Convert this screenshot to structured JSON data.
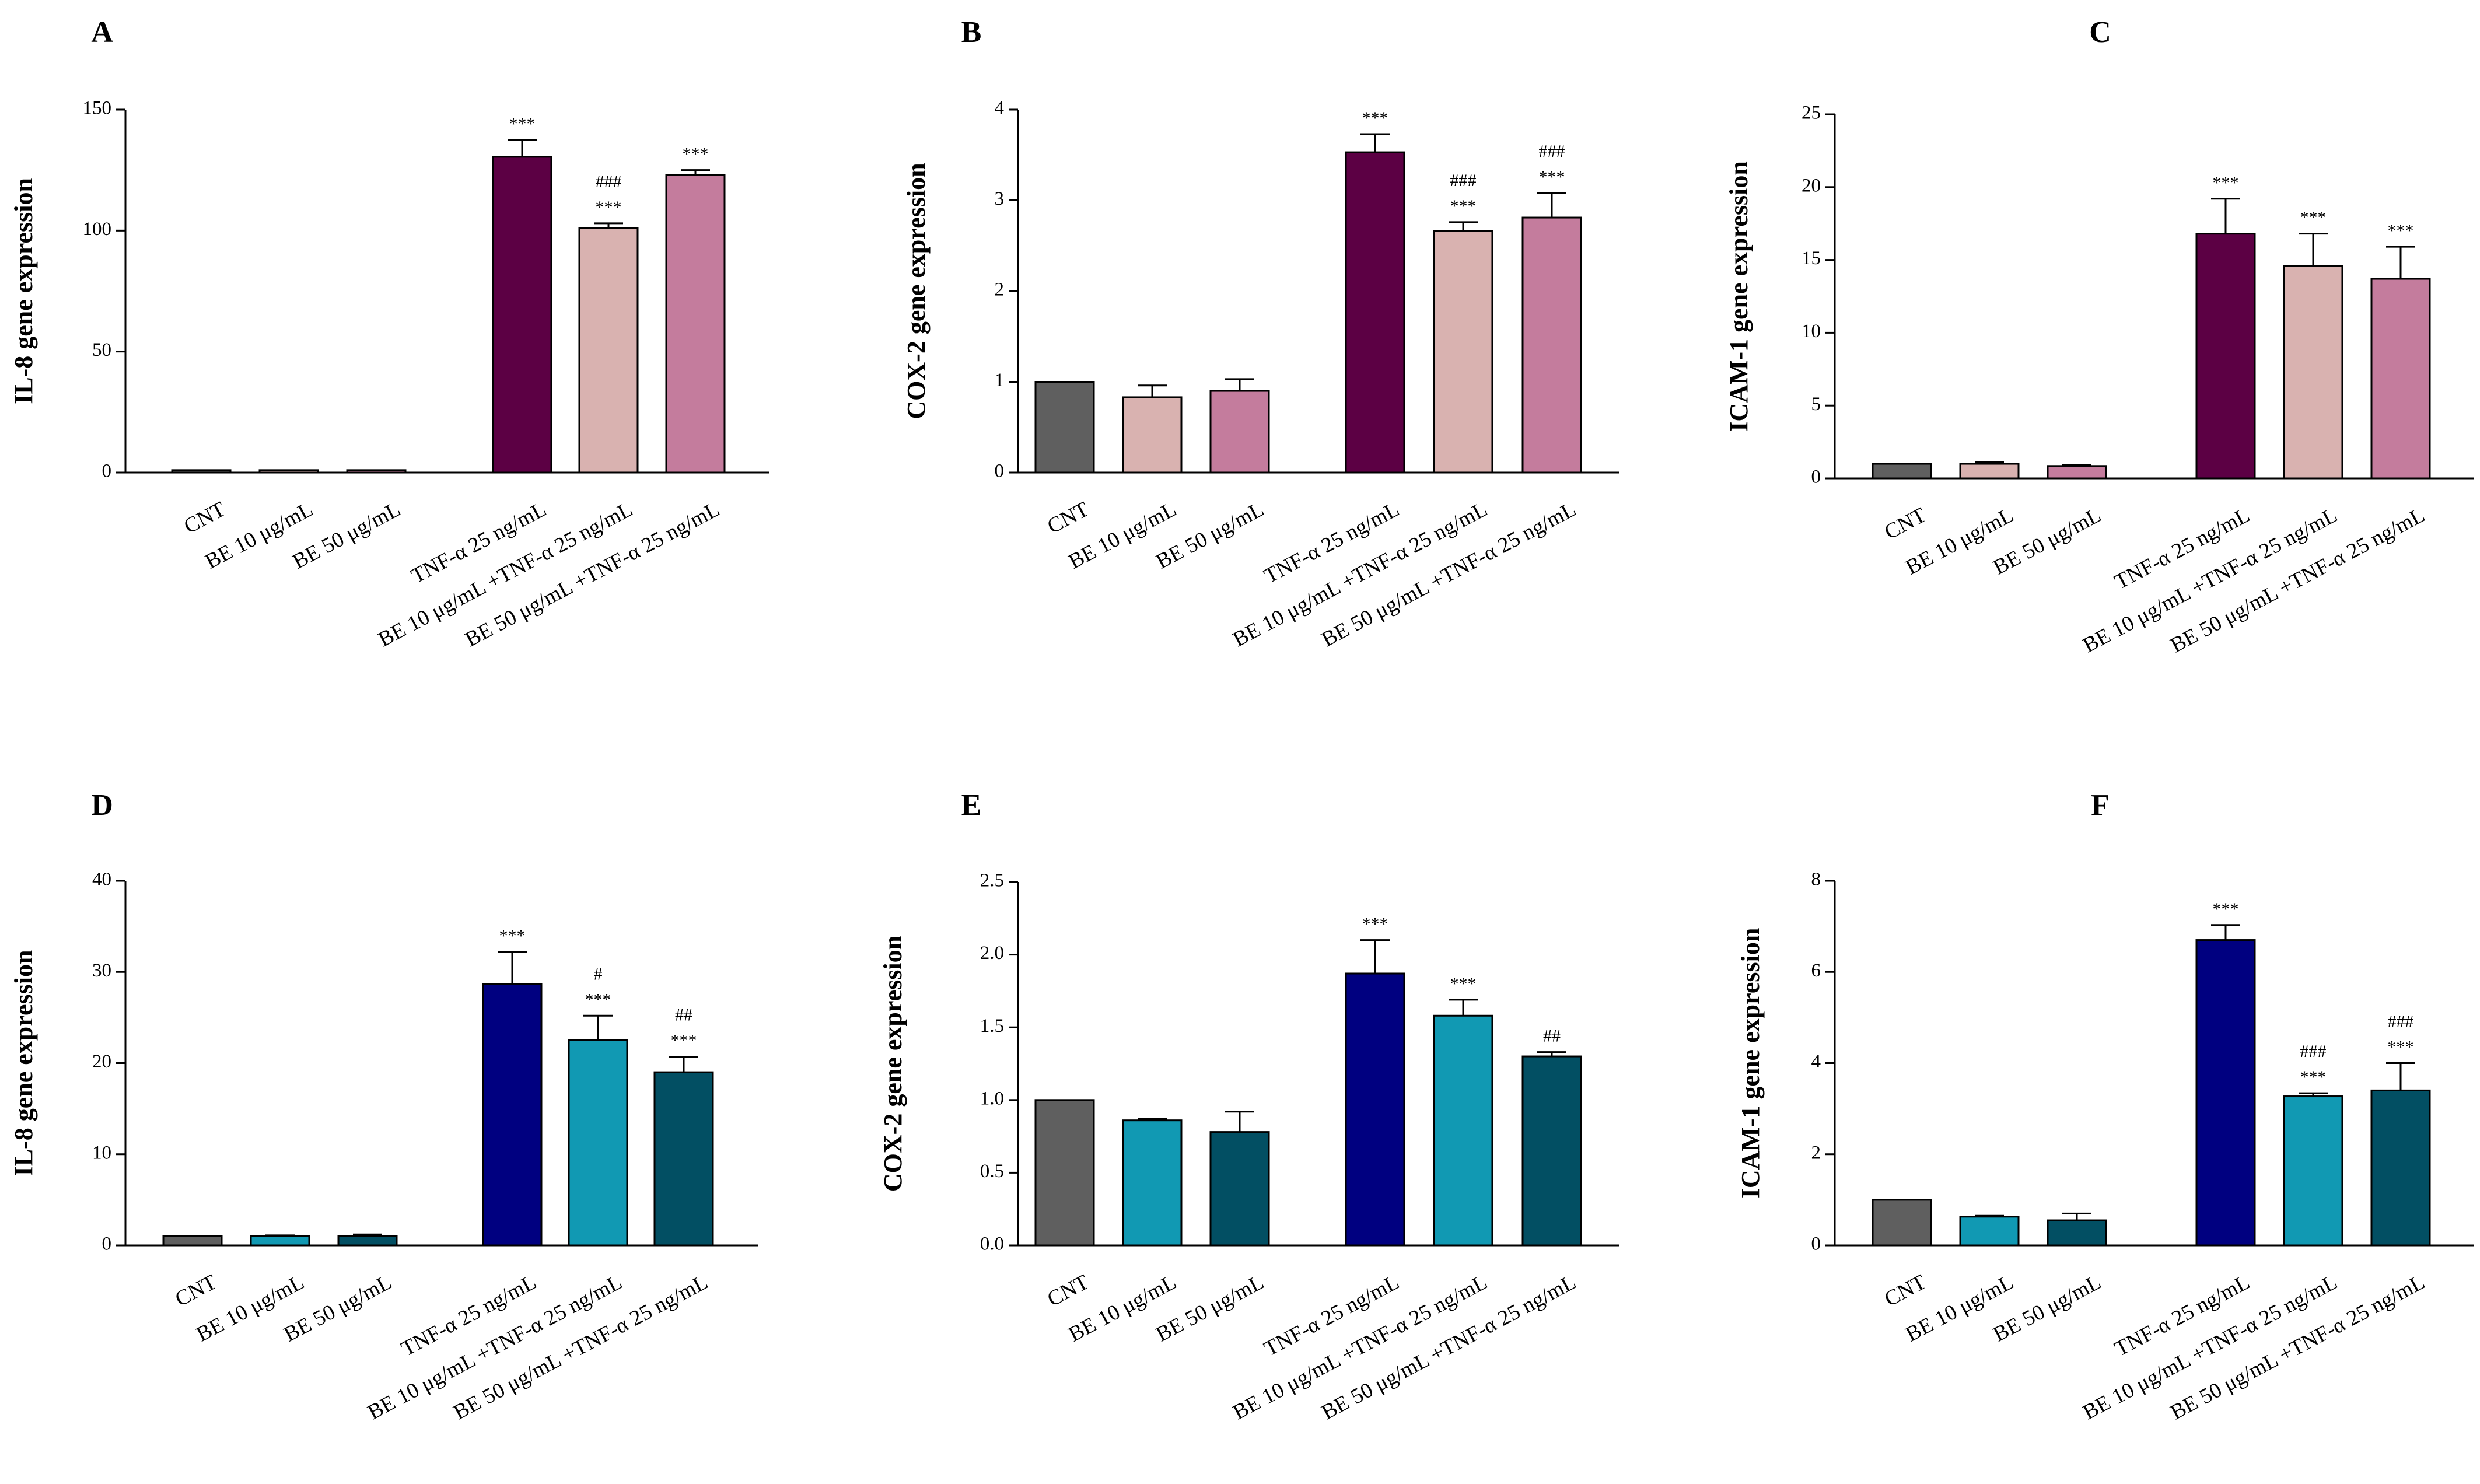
{
  "chart_data": [
    {
      "type": "bar",
      "panel": "A",
      "ylabel": "IL-8 gene expression",
      "ylim": [
        0,
        150
      ],
      "yticks": [
        0,
        50,
        100,
        150
      ],
      "categories": [
        "CNT",
        "BE 10 μg/mL",
        "BE 50 μg/mL",
        "TNF-α 25 ng/mL",
        "BE 10 μg/mL +TNF-α 25 ng/mL",
        "BE 50 μg/mL +TNF-α 25 ng/mL"
      ],
      "values": [
        1,
        1,
        1,
        130.5,
        101,
        123
      ],
      "errors": [
        0,
        0,
        0,
        7,
        2,
        2
      ],
      "annotations": [
        [],
        [],
        [],
        [
          "***"
        ],
        [
          "###",
          "***"
        ],
        [
          "***"
        ]
      ],
      "colors": [
        "#5f5f5f",
        "#d9b2b0",
        "#c47c9d",
        "#5c0044",
        "#d9b2b0",
        "#c47c9d"
      ]
    },
    {
      "type": "bar",
      "panel": "B",
      "ylabel": "COX-2 gene expression",
      "ylim": [
        0,
        4
      ],
      "yticks": [
        0,
        1,
        2,
        3,
        4
      ],
      "categories": [
        "CNT",
        "BE 10 μg/mL",
        "BE 50 μg/mL",
        "TNF-α 25 ng/mL",
        "BE 10 μg/mL +TNF-α 25 ng/mL",
        "BE 50 μg/mL +TNF-α 25 ng/mL"
      ],
      "values": [
        1,
        0.83,
        0.9,
        3.53,
        2.66,
        2.81
      ],
      "errors": [
        0,
        0.13,
        0.13,
        0.2,
        0.1,
        0.27
      ],
      "annotations": [
        [],
        [],
        [],
        [
          "***"
        ],
        [
          "###",
          "***"
        ],
        [
          "###",
          "***"
        ]
      ],
      "colors": [
        "#5f5f5f",
        "#d9b2b0",
        "#c47c9d",
        "#5c0044",
        "#d9b2b0",
        "#c47c9d"
      ]
    },
    {
      "type": "bar",
      "panel": "C",
      "ylabel": "ICAM-1 gene expression",
      "ylim": [
        0,
        25
      ],
      "yticks": [
        0,
        5,
        10,
        15,
        20,
        25
      ],
      "categories": [
        "CNT",
        "BE 10 μg/mL",
        "BE 50 μg/mL",
        "TNF-α 25 ng/mL",
        "BE 10 μg/mL +TNF-α 25 ng/mL",
        "BE 50 μg/mL +TNF-α 25 ng/mL"
      ],
      "values": [
        1,
        1,
        0.85,
        16.8,
        14.6,
        13.7
      ],
      "errors": [
        0,
        0.1,
        0.05,
        2.4,
        2.2,
        2.2
      ],
      "annotations": [
        [],
        [],
        [],
        [
          "***"
        ],
        [
          "***"
        ],
        [
          "***"
        ]
      ],
      "colors": [
        "#5f5f5f",
        "#d9b2b0",
        "#c47c9d",
        "#5c0044",
        "#d9b2b0",
        "#c47c9d"
      ]
    },
    {
      "type": "bar",
      "panel": "D",
      "ylabel": "IL-8 gene expression",
      "ylim": [
        0,
        40
      ],
      "yticks": [
        0,
        10,
        20,
        30,
        40
      ],
      "categories": [
        "CNT",
        "BE 10 μg/mL",
        "BE 50 μg/mL",
        "TNF-α 25 ng/mL",
        "BE 10 μg/mL +TNF-α 25 ng/mL",
        "BE 50 μg/mL +TNF-α 25 ng/mL"
      ],
      "values": [
        1,
        1,
        1,
        28.7,
        22.5,
        19
      ],
      "errors": [
        0,
        0.1,
        0.2,
        3.5,
        2.7,
        1.7
      ],
      "annotations": [
        [],
        [],
        [],
        [
          "***"
        ],
        [
          "#",
          "***"
        ],
        [
          "##",
          "***"
        ]
      ],
      "colors": [
        "#5f5f5f",
        "#1199b3",
        "#024f63",
        "#000080",
        "#1199b3",
        "#024f63"
      ]
    },
    {
      "type": "bar",
      "panel": "E",
      "ylabel": "COX-2 gene expression",
      "ylim": [
        0,
        2.5
      ],
      "yticks": [
        "0.0",
        "0.5",
        "1.0",
        "1.5",
        "2.0",
        "2.5"
      ],
      "categories": [
        "CNT",
        "BE 10 μg/mL",
        "BE 50 μg/mL",
        "TNF-α 25 ng/mL",
        "BE 10 μg/mL +TNF-α 25 ng/mL",
        "BE 50 μg/mL +TNF-α 25 ng/mL"
      ],
      "values": [
        1,
        0.86,
        0.78,
        1.87,
        1.58,
        1.3
      ],
      "errors": [
        0,
        0.01,
        0.14,
        0.23,
        0.11,
        0.03
      ],
      "annotations": [
        [],
        [],
        [],
        [
          "***"
        ],
        [
          "***"
        ],
        [
          "##"
        ]
      ],
      "colors": [
        "#5f5f5f",
        "#1199b3",
        "#024f63",
        "#000080",
        "#1199b3",
        "#024f63"
      ]
    },
    {
      "type": "bar",
      "panel": "F",
      "ylabel": "ICAM-1 gene expression",
      "ylim": [
        0,
        8
      ],
      "yticks": [
        0,
        2,
        4,
        6,
        8
      ],
      "categories": [
        "CNT",
        "BE 10 μg/mL",
        "BE 50 μg/mL",
        "TNF-α 25 ng/mL",
        "BE 10 μg/mL +TNF-α 25 ng/mL",
        "BE 50 μg/mL +TNF-α 25 ng/mL"
      ],
      "values": [
        1,
        0.63,
        0.55,
        6.7,
        3.27,
        3.4
      ],
      "errors": [
        0,
        0.02,
        0.15,
        0.33,
        0.07,
        0.6
      ],
      "annotations": [
        [],
        [],
        [],
        [
          "***"
        ],
        [
          "###",
          "***"
        ],
        [
          "###",
          "***"
        ]
      ],
      "colors": [
        "#5f5f5f",
        "#1199b3",
        "#024f63",
        "#000080",
        "#1199b3",
        "#024f63"
      ]
    }
  ]
}
